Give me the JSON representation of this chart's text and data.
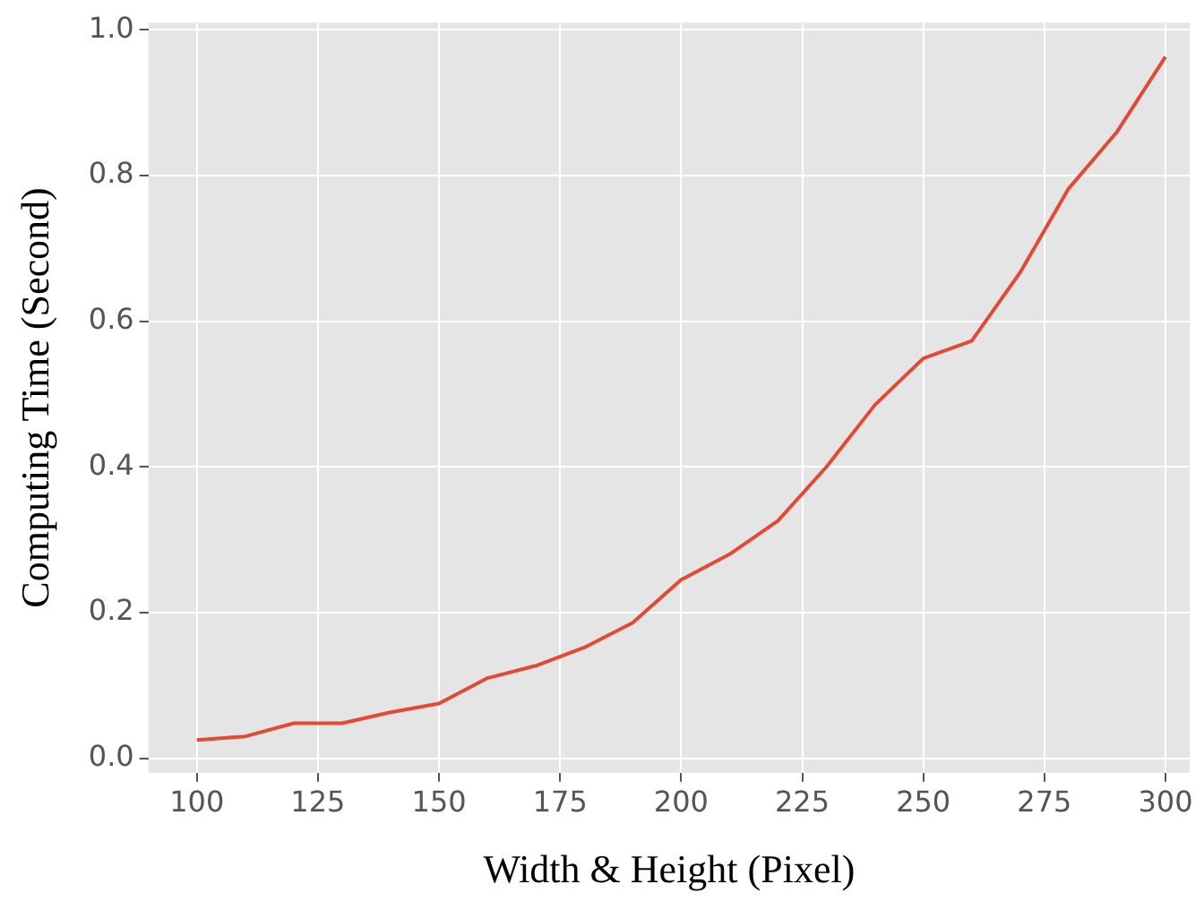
{
  "chart_data": {
    "type": "line",
    "xlabel": "Width & Height (Pixel)",
    "ylabel": "Computing Time (Second)",
    "x": [
      100,
      110,
      120,
      130,
      140,
      150,
      160,
      170,
      180,
      190,
      200,
      210,
      220,
      230,
      240,
      250,
      260,
      270,
      280,
      290,
      300
    ],
    "series": [
      {
        "color": "#e24a33",
        "values": [
          0.025,
          0.03,
          0.048,
          0.048,
          0.063,
          0.075,
          0.11,
          0.127,
          0.152,
          0.186,
          0.245,
          0.28,
          0.326,
          0.4,
          0.485,
          0.549,
          0.573,
          0.667,
          0.782,
          0.86,
          0.963
        ]
      }
    ],
    "xlim": [
      90,
      305
    ],
    "xticks": [
      100,
      125,
      150,
      175,
      200,
      225,
      250,
      275,
      300
    ],
    "ylim": [
      -0.02,
      1.01
    ],
    "yticks": [
      {
        "value": 0,
        "label": "0.0"
      },
      {
        "value": 0.2,
        "label": "0.2"
      },
      {
        "value": 0.4,
        "label": "0.4"
      },
      {
        "value": 0.6,
        "label": "0.6"
      },
      {
        "value": 0.8,
        "label": "0.8"
      },
      {
        "value": 1,
        "label": "1.0"
      }
    ],
    "grid": true,
    "legend": false,
    "marker": "none",
    "line_style": "solid"
  }
}
